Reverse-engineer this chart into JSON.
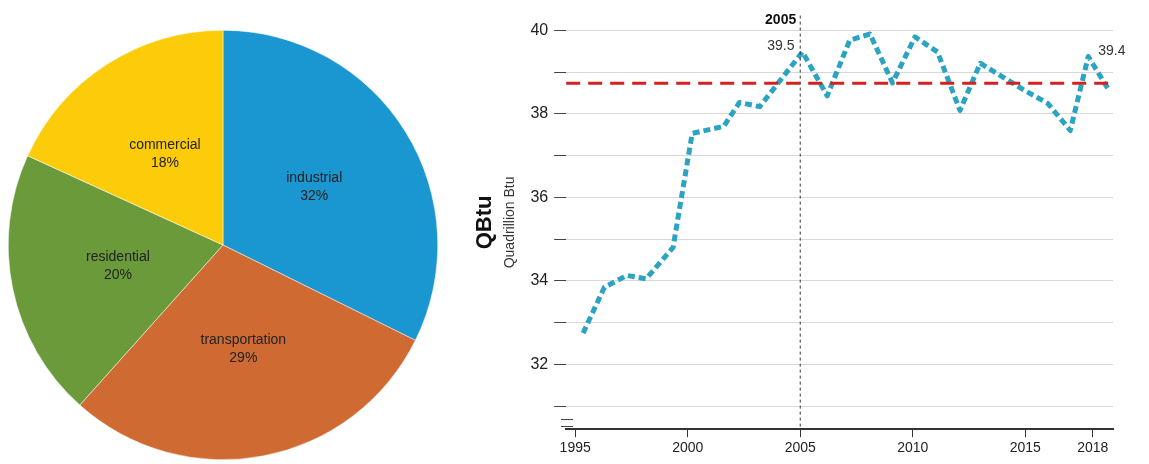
{
  "chart_data": [
    {
      "type": "pie",
      "categories": [
        "industrial",
        "transportation",
        "residential",
        "commercial"
      ],
      "values": [
        32,
        29,
        20,
        18
      ],
      "value_labels": [
        "32%",
        "29%",
        "20%",
        "18%"
      ],
      "colors": [
        "#1a96d0",
        "#d06a33",
        "#6a9a3a",
        "#fccc0a"
      ],
      "legend": false
    },
    {
      "type": "line",
      "ylabel": "QBtu",
      "annotations": [
        "Quadrillion Btu",
        {
          "text": "39.5",
          "x": 2005.1,
          "y": 39.48
        },
        {
          "text": "39.4",
          "x": 2017.8,
          "y": 39.37
        }
      ],
      "xlim": [
        1994.6,
        2018.9
      ],
      "xticks": [
        1995,
        2000,
        2005,
        2010,
        2015,
        2018
      ],
      "ylim": [
        30.45,
        40.35
      ],
      "yticks": [
        {
          "value": 31,
          "label": null
        },
        32,
        {
          "value": 33,
          "label": null
        },
        34,
        {
          "value": 35,
          "label": null
        },
        36,
        {
          "value": 37,
          "label": null
        },
        38,
        {
          "value": 39,
          "label": null
        },
        40
      ],
      "grid": "y",
      "legend": false,
      "line_style": "dashed",
      "marker": "none",
      "ref_lines": [
        {
          "axis": "x",
          "value": 2005,
          "label": "2005",
          "color": "#333333",
          "line_style": "dotted"
        },
        {
          "axis": "y",
          "value": 38.73,
          "color": "#d62020",
          "line_style": "dashed"
        }
      ],
      "series": [
        {
          "color": "#2ba3c2",
          "x": [
            1995.35,
            1996.3,
            1997.3,
            1998.15,
            1999.35,
            2000.2,
            2001.6,
            2002.3,
            2003.2,
            2005.1,
            2006.2,
            2007.2,
            2008.1,
            2009.1,
            2010.1,
            2011.1,
            2012.1,
            2013.0,
            2015.0,
            2016.0,
            2017.0,
            2017.8,
            2018.7
          ],
          "values": [
            32.75,
            33.85,
            34.13,
            34.05,
            34.8,
            37.53,
            37.7,
            38.27,
            38.17,
            39.48,
            38.43,
            39.76,
            39.91,
            38.74,
            39.84,
            39.48,
            38.08,
            39.21,
            38.55,
            38.25,
            37.6,
            39.37,
            38.58
          ]
        }
      ]
    }
  ]
}
